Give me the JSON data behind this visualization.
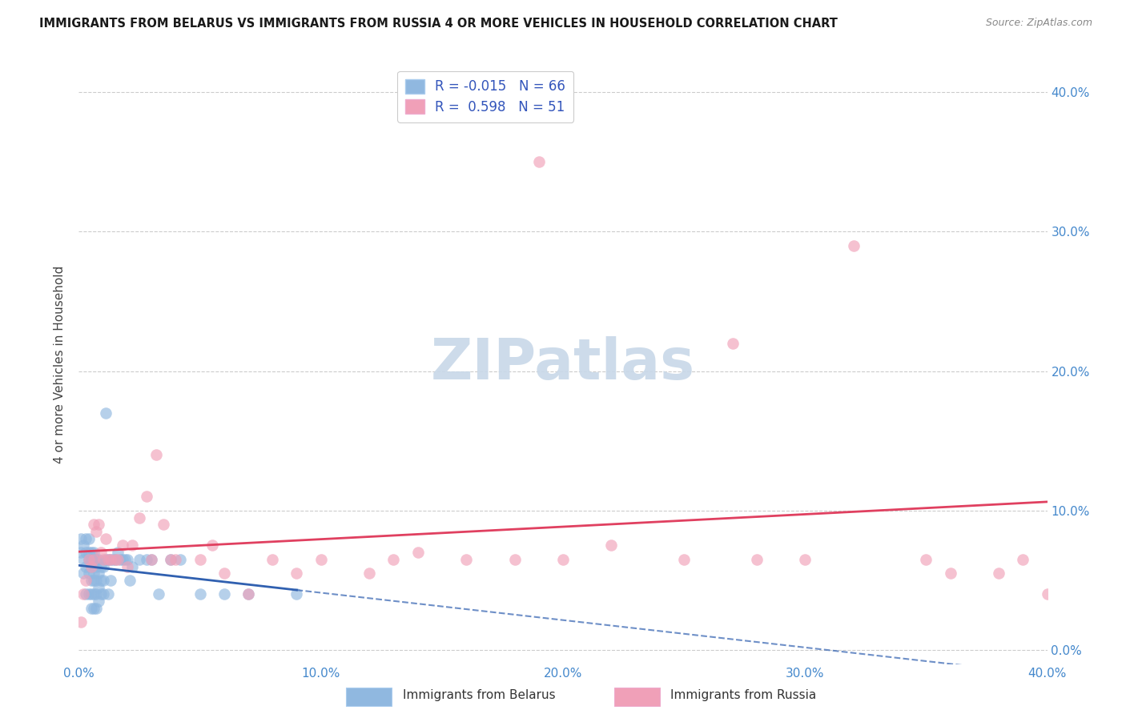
{
  "title": "IMMIGRANTS FROM BELARUS VS IMMIGRANTS FROM RUSSIA 4 OR MORE VEHICLES IN HOUSEHOLD CORRELATION CHART",
  "source": "Source: ZipAtlas.com",
  "ylabel": "4 or more Vehicles in Household",
  "xlim": [
    0.0,
    0.4
  ],
  "ylim": [
    0.0,
    0.42
  ],
  "xtick_values": [
    0.0,
    0.1,
    0.2,
    0.3,
    0.4
  ],
  "xtick_labels": [
    "0.0%",
    "10.0%",
    "20.0%",
    "30.0%",
    "40.0%"
  ],
  "ytick_values": [
    0.0,
    0.1,
    0.2,
    0.3,
    0.4
  ],
  "ytick_labels": [
    "0.0%",
    "10.0%",
    "20.0%",
    "30.0%",
    "40.0%"
  ],
  "belarus_color": "#90b8e0",
  "russia_color": "#f0a0b8",
  "belarus_line_color": "#3060b0",
  "russia_line_color": "#e04060",
  "belarus_scatter_x": [
    0.001,
    0.001,
    0.002,
    0.002,
    0.002,
    0.003,
    0.003,
    0.003,
    0.003,
    0.004,
    0.004,
    0.004,
    0.004,
    0.004,
    0.005,
    0.005,
    0.005,
    0.005,
    0.005,
    0.005,
    0.006,
    0.006,
    0.006,
    0.006,
    0.006,
    0.006,
    0.007,
    0.007,
    0.007,
    0.007,
    0.007,
    0.008,
    0.008,
    0.008,
    0.008,
    0.009,
    0.009,
    0.009,
    0.01,
    0.01,
    0.01,
    0.011,
    0.011,
    0.012,
    0.012,
    0.013,
    0.013,
    0.014,
    0.015,
    0.016,
    0.017,
    0.018,
    0.019,
    0.02,
    0.021,
    0.022,
    0.025,
    0.028,
    0.03,
    0.033,
    0.038,
    0.042,
    0.05,
    0.06,
    0.07,
    0.09
  ],
  "belarus_scatter_y": [
    0.07,
    0.08,
    0.055,
    0.065,
    0.075,
    0.04,
    0.06,
    0.07,
    0.08,
    0.04,
    0.055,
    0.065,
    0.07,
    0.08,
    0.03,
    0.04,
    0.05,
    0.06,
    0.065,
    0.07,
    0.03,
    0.04,
    0.05,
    0.055,
    0.065,
    0.07,
    0.03,
    0.04,
    0.05,
    0.06,
    0.065,
    0.035,
    0.045,
    0.055,
    0.065,
    0.04,
    0.05,
    0.06,
    0.04,
    0.05,
    0.06,
    0.065,
    0.17,
    0.04,
    0.065,
    0.05,
    0.065,
    0.065,
    0.065,
    0.07,
    0.065,
    0.065,
    0.065,
    0.065,
    0.05,
    0.06,
    0.065,
    0.065,
    0.065,
    0.04,
    0.065,
    0.065,
    0.04,
    0.04,
    0.04,
    0.04
  ],
  "russia_scatter_x": [
    0.001,
    0.002,
    0.003,
    0.004,
    0.005,
    0.006,
    0.006,
    0.007,
    0.008,
    0.009,
    0.01,
    0.011,
    0.012,
    0.013,
    0.015,
    0.016,
    0.018,
    0.02,
    0.022,
    0.025,
    0.028,
    0.03,
    0.032,
    0.035,
    0.038,
    0.04,
    0.05,
    0.055,
    0.06,
    0.07,
    0.08,
    0.09,
    0.1,
    0.12,
    0.13,
    0.14,
    0.16,
    0.18,
    0.19,
    0.2,
    0.22,
    0.25,
    0.27,
    0.28,
    0.3,
    0.32,
    0.35,
    0.36,
    0.38,
    0.39,
    0.4
  ],
  "russia_scatter_y": [
    0.02,
    0.04,
    0.05,
    0.065,
    0.06,
    0.065,
    0.09,
    0.085,
    0.09,
    0.07,
    0.065,
    0.08,
    0.065,
    0.065,
    0.065,
    0.065,
    0.075,
    0.06,
    0.075,
    0.095,
    0.11,
    0.065,
    0.14,
    0.09,
    0.065,
    0.065,
    0.065,
    0.075,
    0.055,
    0.04,
    0.065,
    0.055,
    0.065,
    0.055,
    0.065,
    0.07,
    0.065,
    0.065,
    0.35,
    0.065,
    0.075,
    0.065,
    0.22,
    0.065,
    0.065,
    0.29,
    0.065,
    0.055,
    0.055,
    0.065,
    0.04
  ],
  "watermark_text": "ZIPatlas",
  "watermark_color": "#c8d8e8",
  "legend_label_belarus": "R = -0.015   N = 66",
  "legend_label_russia": "R =  0.598   N = 51",
  "legend_text_color": "#3355bb",
  "bottom_legend_belarus": "Immigrants from Belarus",
  "bottom_legend_russia": "Immigrants from Russia"
}
